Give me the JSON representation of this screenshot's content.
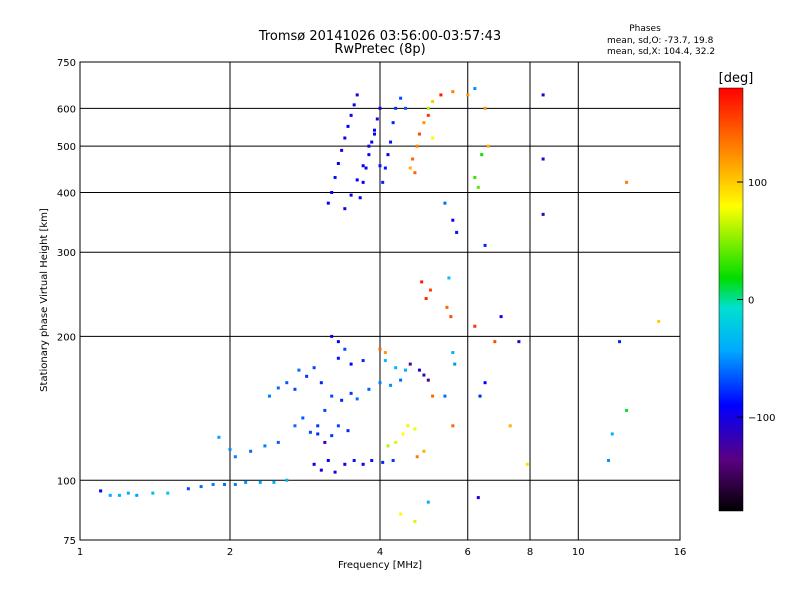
{
  "title": "Tromsø 20141026 03:56:00-03:57:43",
  "subtitle": "RwPretec (8p)",
  "stats": {
    "heading": "Phases",
    "line_o": "mean, sd,O: -73.7, 19.8",
    "line_x": "mean, sd,X: 104.4, 32.2"
  },
  "colorbar": {
    "label": "[deg]",
    "range": [
      -180,
      180
    ],
    "ticks": [
      {
        "value": 100,
        "label": "100"
      },
      {
        "value": 0,
        "label": "0"
      },
      {
        "value": -100,
        "label": "−100"
      }
    ]
  },
  "chart_data": {
    "type": "scatter",
    "xlabel": "Frequency [MHz]",
    "ylabel": "Stationary phase Virtual Height [km]",
    "xscale": "log",
    "yscale": "log",
    "xlim": [
      1,
      16
    ],
    "ylim": [
      75,
      750
    ],
    "grid": true,
    "xticks": [
      {
        "value": 1,
        "label": "1"
      },
      {
        "value": 2,
        "label": "2"
      },
      {
        "value": 4,
        "label": "4"
      },
      {
        "value": 6,
        "label": "6"
      },
      {
        "value": 8,
        "label": "8"
      },
      {
        "value": 10,
        "label": "10"
      },
      {
        "value": 16,
        "label": "16"
      }
    ],
    "yticks": [
      {
        "value": 75,
        "label": "75"
      },
      {
        "value": 100,
        "label": "100"
      },
      {
        "value": 200,
        "label": "200"
      },
      {
        "value": 300,
        "label": "300"
      },
      {
        "value": 400,
        "label": "400"
      },
      {
        "value": 500,
        "label": "500"
      },
      {
        "value": 600,
        "label": "600"
      },
      {
        "value": 750,
        "label": "750"
      }
    ],
    "color_by": "phase [deg]",
    "points": [
      [
        1.1,
        95,
        -95
      ],
      [
        1.15,
        93,
        -40
      ],
      [
        1.2,
        93,
        -35
      ],
      [
        1.25,
        94,
        -40
      ],
      [
        1.3,
        93,
        -45
      ],
      [
        1.4,
        94,
        -30
      ],
      [
        1.5,
        94,
        -25
      ],
      [
        1.65,
        96,
        -70
      ],
      [
        1.75,
        97,
        -60
      ],
      [
        1.85,
        98,
        -55
      ],
      [
        1.95,
        98,
        -60
      ],
      [
        2.05,
        98,
        -55
      ],
      [
        2.15,
        99,
        -50
      ],
      [
        2.3,
        99,
        -45
      ],
      [
        2.45,
        99,
        -40
      ],
      [
        2.6,
        100,
        -35
      ],
      [
        1.9,
        123,
        -45
      ],
      [
        2.0,
        116,
        -50
      ],
      [
        2.05,
        112,
        -55
      ],
      [
        2.2,
        115,
        -60
      ],
      [
        2.35,
        118,
        -55
      ],
      [
        2.5,
        120,
        -65
      ],
      [
        2.4,
        150,
        -55
      ],
      [
        2.5,
        156,
        -60
      ],
      [
        2.6,
        160,
        -65
      ],
      [
        2.7,
        155,
        -70
      ],
      [
        2.75,
        170,
        -60
      ],
      [
        2.85,
        165,
        -75
      ],
      [
        2.95,
        172,
        -70
      ],
      [
        3.05,
        160,
        -80
      ],
      [
        2.7,
        130,
        -60
      ],
      [
        2.8,
        135,
        -65
      ],
      [
        2.9,
        126,
        -70
      ],
      [
        3.0,
        130,
        -75
      ],
      [
        3.1,
        140,
        -70
      ],
      [
        2.95,
        108,
        -90
      ],
      [
        3.05,
        105,
        -100
      ],
      [
        3.15,
        110,
        -95
      ],
      [
        3.25,
        104,
        -110
      ],
      [
        3.4,
        108,
        -95
      ],
      [
        3.55,
        110,
        -85
      ],
      [
        3.7,
        108,
        -90
      ],
      [
        3.85,
        110,
        -85
      ],
      [
        4.05,
        109,
        -80
      ],
      [
        4.25,
        110,
        -75
      ],
      [
        3.0,
        125,
        -80
      ],
      [
        3.1,
        120,
        -120
      ],
      [
        3.2,
        124,
        -75
      ],
      [
        3.3,
        130,
        -70
      ],
      [
        3.45,
        127,
        -80
      ],
      [
        3.2,
        150,
        -70
      ],
      [
        3.35,
        147,
        -80
      ],
      [
        3.5,
        152,
        -75
      ],
      [
        3.6,
        148,
        -60
      ],
      [
        3.8,
        155,
        -65
      ],
      [
        4.0,
        160,
        -55
      ],
      [
        4.2,
        158,
        -50
      ],
      [
        4.4,
        162,
        -60
      ],
      [
        3.3,
        180,
        -85
      ],
      [
        3.4,
        188,
        -70
      ],
      [
        3.5,
        175,
        -90
      ],
      [
        3.7,
        178,
        -80
      ],
      [
        4.1,
        178,
        -30
      ],
      [
        4.3,
        172,
        -35
      ],
      [
        4.5,
        170,
        -40
      ],
      [
        3.2,
        200,
        -90
      ],
      [
        3.3,
        195,
        -95
      ],
      [
        4.0,
        188,
        140
      ],
      [
        4.1,
        185,
        120
      ],
      [
        4.15,
        118,
        60
      ],
      [
        4.3,
        120,
        70
      ],
      [
        4.45,
        125,
        80
      ],
      [
        4.55,
        130,
        85
      ],
      [
        4.7,
        128,
        75
      ],
      [
        4.75,
        112,
        130
      ],
      [
        4.9,
        115,
        110
      ],
      [
        4.6,
        175,
        -130
      ],
      [
        4.8,
        170,
        -110
      ],
      [
        4.9,
        166,
        -120
      ],
      [
        5.0,
        162,
        -140
      ],
      [
        5.1,
        150,
        140
      ],
      [
        4.85,
        260,
        170
      ],
      [
        4.95,
        240,
        165
      ],
      [
        5.05,
        250,
        155
      ],
      [
        5.45,
        230,
        140
      ],
      [
        5.55,
        220,
        150
      ],
      [
        5.5,
        265,
        -30
      ],
      [
        5.6,
        185,
        -40
      ],
      [
        5.65,
        175,
        -50
      ],
      [
        5.4,
        150,
        -60
      ],
      [
        5.6,
        130,
        140
      ],
      [
        6.2,
        210,
        160
      ],
      [
        6.35,
        150,
        -80
      ],
      [
        6.5,
        160,
        -90
      ],
      [
        6.8,
        195,
        150
      ],
      [
        7.0,
        220,
        -100
      ],
      [
        7.3,
        130,
        110
      ],
      [
        7.6,
        195,
        -110
      ],
      [
        7.9,
        108,
        90
      ],
      [
        5.0,
        90,
        -40
      ],
      [
        6.3,
        92,
        -100
      ],
      [
        4.4,
        85,
        80
      ],
      [
        4.7,
        82,
        70
      ],
      [
        11.5,
        110,
        -50
      ],
      [
        11.7,
        125,
        -40
      ],
      [
        12.5,
        140,
        10
      ],
      [
        14.5,
        215,
        100
      ],
      [
        12.1,
        195,
        -80
      ],
      [
        3.15,
        380,
        -95
      ],
      [
        3.2,
        400,
        -90
      ],
      [
        3.25,
        430,
        -85
      ],
      [
        3.3,
        460,
        -95
      ],
      [
        3.35,
        490,
        -100
      ],
      [
        3.4,
        520,
        -95
      ],
      [
        3.45,
        550,
        -90
      ],
      [
        3.5,
        580,
        -100
      ],
      [
        3.55,
        610,
        -95
      ],
      [
        3.6,
        640,
        -105
      ],
      [
        3.65,
        390,
        -90
      ],
      [
        3.7,
        420,
        -95
      ],
      [
        3.75,
        450,
        -100
      ],
      [
        3.8,
        480,
        -95
      ],
      [
        3.85,
        510,
        -90
      ],
      [
        3.9,
        540,
        -95
      ],
      [
        3.95,
        570,
        -100
      ],
      [
        4.0,
        600,
        -105
      ],
      [
        4.05,
        420,
        -80
      ],
      [
        4.1,
        450,
        -85
      ],
      [
        4.15,
        480,
        -90
      ],
      [
        4.2,
        510,
        -85
      ],
      [
        4.25,
        560,
        -80
      ],
      [
        4.3,
        600,
        -75
      ],
      [
        4.4,
        630,
        -70
      ],
      [
        4.5,
        600,
        -65
      ],
      [
        3.4,
        370,
        -100
      ],
      [
        3.5,
        395,
        -95
      ],
      [
        3.6,
        425,
        -90
      ],
      [
        3.7,
        455,
        -95
      ],
      [
        3.8,
        500,
        -100
      ],
      [
        3.9,
        530,
        -95
      ],
      [
        4.0,
        455,
        -85
      ],
      [
        4.6,
        450,
        110
      ],
      [
        4.65,
        470,
        140
      ],
      [
        4.75,
        500,
        130
      ],
      [
        4.8,
        530,
        150
      ],
      [
        4.9,
        560,
        120
      ],
      [
        5.0,
        580,
        160
      ],
      [
        5.1,
        620,
        100
      ],
      [
        5.3,
        640,
        170
      ],
      [
        5.6,
        650,
        130
      ],
      [
        4.7,
        440,
        140
      ],
      [
        5.0,
        600,
        60
      ],
      [
        5.1,
        520,
        80
      ],
      [
        5.4,
        380,
        -60
      ],
      [
        6.2,
        430,
        30
      ],
      [
        6.3,
        410,
        40
      ],
      [
        6.4,
        480,
        20
      ],
      [
        6.5,
        600,
        120
      ],
      [
        6.6,
        500,
        110
      ],
      [
        6.0,
        640,
        120
      ],
      [
        6.2,
        660,
        -50
      ],
      [
        5.6,
        350,
        -95
      ],
      [
        5.7,
        330,
        -85
      ],
      [
        6.5,
        310,
        -80
      ],
      [
        8.5,
        640,
        -110
      ],
      [
        8.5,
        470,
        -110
      ],
      [
        8.5,
        360,
        -115
      ],
      [
        12.5,
        420,
        130
      ]
    ]
  }
}
